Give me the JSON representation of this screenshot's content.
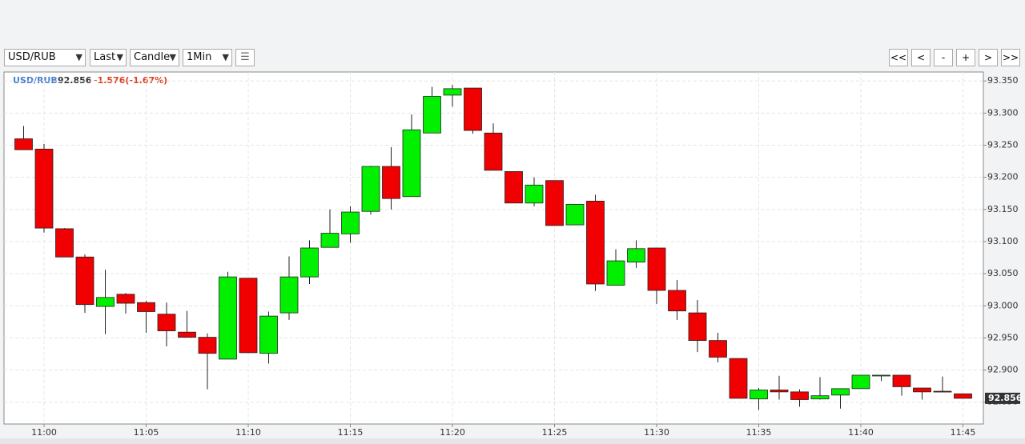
{
  "toolbar": {
    "symbol": "USD/RUB",
    "field": "Last",
    "style": "Candle",
    "interval": "1Min",
    "nav": [
      "<<",
      "<",
      "-",
      "+",
      ">",
      ">>"
    ]
  },
  "chart_data": {
    "type": "candlestick",
    "symbol": "USD/RUB",
    "last": 92.856,
    "change": "-1.576(-1.67%)",
    "categories": [
      null,
      "11:00",
      null,
      null,
      null,
      null,
      "11:05",
      null,
      null,
      null,
      null,
      "11:10",
      null,
      null,
      null,
      null,
      "11:15",
      null,
      null,
      null,
      null,
      "11:20",
      null,
      null,
      null,
      null,
      "11:25",
      null,
      null,
      null,
      null,
      "11:30",
      null,
      null,
      null,
      null,
      "11:35",
      null,
      null,
      null,
      null,
      "11:40",
      null,
      null,
      null,
      null,
      "11:45"
    ],
    "open": [
      93.26,
      93.244,
      93.12,
      93.076,
      92.999,
      93.018,
      93.005,
      92.987,
      92.959,
      92.951,
      92.917,
      93.043,
      92.926,
      92.989,
      93.045,
      93.091,
      93.112,
      93.147,
      93.217,
      93.17,
      93.269,
      93.328,
      93.339,
      93.269,
      93.209,
      93.16,
      93.195,
      93.126,
      93.163,
      93.032,
      93.068,
      93.09,
      93.024,
      92.989,
      92.946,
      92.918,
      92.855,
      92.869,
      92.866,
      92.855,
      92.861,
      92.871,
      92.891,
      92.892,
      92.872,
      92.867,
      92.863
    ],
    "high": [
      93.28,
      93.252,
      93.121,
      93.08,
      93.056,
      93.02,
      93.008,
      93.005,
      92.992,
      92.957,
      93.053,
      93.043,
      92.991,
      93.077,
      93.102,
      93.15,
      93.155,
      93.218,
      93.247,
      93.298,
      93.341,
      93.344,
      93.339,
      93.284,
      93.209,
      93.2,
      93.195,
      93.158,
      93.173,
      93.088,
      93.102,
      93.09,
      93.04,
      93.009,
      92.958,
      92.918,
      92.872,
      92.891,
      92.87,
      92.889,
      92.871,
      92.892,
      92.892,
      92.892,
      92.872,
      92.89,
      92.863
    ],
    "low": [
      93.243,
      93.114,
      93.076,
      92.989,
      92.956,
      92.988,
      92.958,
      92.937,
      92.951,
      92.87,
      92.917,
      92.927,
      92.91,
      92.978,
      93.034,
      93.091,
      93.098,
      93.142,
      93.15,
      93.17,
      93.269,
      93.31,
      93.268,
      93.211,
      93.16,
      93.155,
      93.125,
      93.126,
      93.023,
      93.032,
      93.059,
      93.003,
      92.978,
      92.928,
      92.912,
      92.856,
      92.838,
      92.854,
      92.843,
      92.854,
      92.84,
      92.871,
      92.883,
      92.86,
      92.854,
      92.866,
      92.856
    ],
    "close": [
      93.243,
      93.121,
      93.076,
      93.002,
      93.013,
      93.004,
      92.991,
      92.961,
      92.951,
      92.926,
      93.045,
      92.927,
      92.984,
      93.045,
      93.09,
      93.113,
      93.146,
      93.217,
      93.167,
      93.274,
      93.326,
      93.338,
      93.273,
      93.211,
      93.16,
      93.188,
      93.125,
      93.158,
      93.034,
      93.07,
      93.089,
      93.024,
      92.992,
      92.946,
      92.92,
      92.856,
      92.869,
      92.866,
      92.854,
      92.86,
      92.871,
      92.892,
      92.892,
      92.874,
      92.866,
      92.866,
      92.856
    ],
    "up_color": "#00f000",
    "down_color": "#f00000",
    "ylim": [
      92.816,
      93.364
    ],
    "yticks": [
      {
        "value": 92.85,
        "label": "92.850"
      },
      {
        "value": 92.9,
        "label": "92.900"
      },
      {
        "value": 92.95,
        "label": "92.950"
      },
      {
        "value": 93.0,
        "label": "93.000"
      },
      {
        "value": 93.05,
        "label": "93.050"
      },
      {
        "value": 93.1,
        "label": "93.100"
      },
      {
        "value": 93.15,
        "label": "93.150"
      },
      {
        "value": 93.2,
        "label": "93.200"
      },
      {
        "value": 93.25,
        "label": "93.250"
      },
      {
        "value": 93.3,
        "label": "93.300"
      },
      {
        "value": 93.35,
        "label": "93.350"
      }
    ],
    "grid": true
  }
}
